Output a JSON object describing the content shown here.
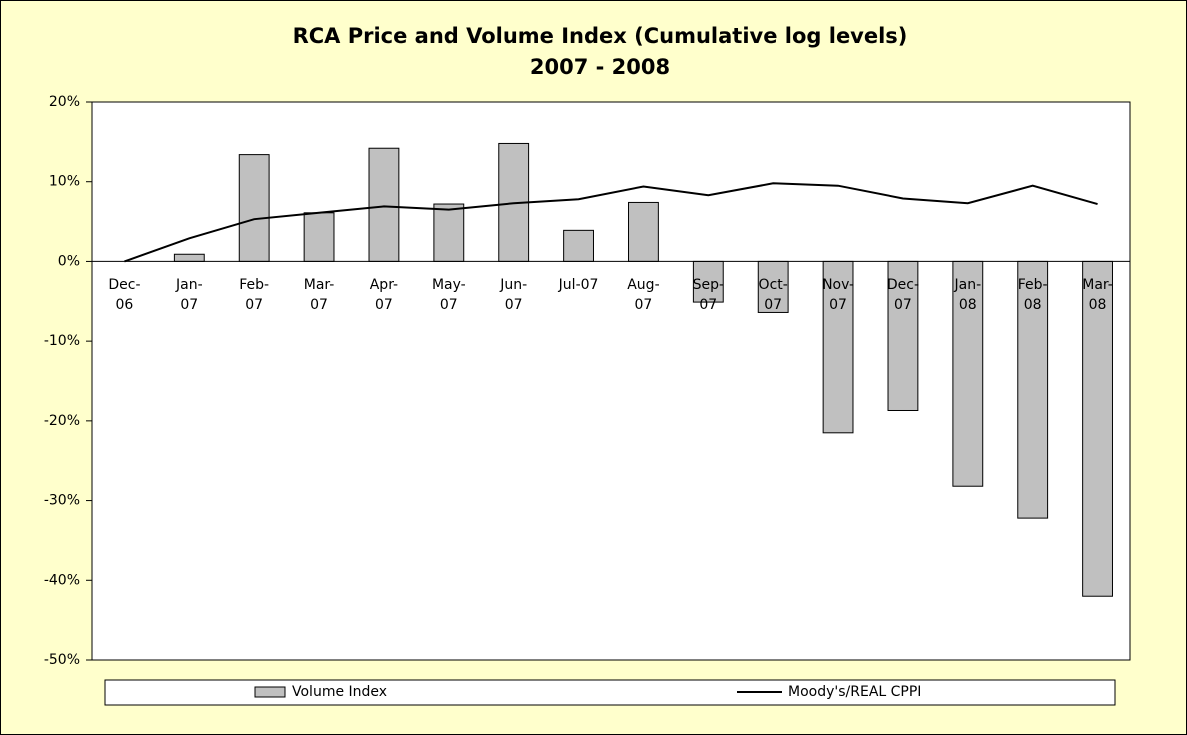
{
  "chart_data": {
    "type": "bar-line",
    "title": "RCA Price and Volume  Index (Cumulative log levels)",
    "subtitle": "2007 - 2008",
    "categories": [
      "Dec-06",
      "Jan-07",
      "Feb-07",
      "Mar-07",
      "Apr-07",
      "May-07",
      "Jun-07",
      "Jul-07",
      "Aug-07",
      "Sep-07",
      "Oct-07",
      "Nov-07",
      "Dec-07",
      "Jan-08",
      "Feb-08",
      "Mar-08"
    ],
    "series": [
      {
        "name": "Volume Index",
        "type": "bar",
        "color": "#c0c0c0",
        "values": [
          0,
          0.9,
          13.4,
          6.1,
          14.2,
          7.2,
          14.8,
          3.9,
          7.4,
          -5.1,
          -6.4,
          -21.5,
          -18.7,
          -28.2,
          -32.2,
          -42.0
        ]
      },
      {
        "name": "Moody's/REAL CPPI",
        "type": "line",
        "color": "#000000",
        "values": [
          0,
          2.9,
          5.3,
          6.1,
          6.9,
          6.5,
          7.3,
          7.8,
          9.4,
          8.3,
          9.8,
          9.5,
          7.9,
          7.3,
          9.5,
          7.2
        ]
      }
    ],
    "ylim": [
      -50,
      20
    ],
    "yticks": [
      {
        "value": -50,
        "label": "-50%"
      },
      {
        "value": -40,
        "label": "-40%"
      },
      {
        "value": -30,
        "label": "-30%"
      },
      {
        "value": -20,
        "label": "-20%"
      },
      {
        "value": -10,
        "label": "-10%"
      },
      {
        "value": 0,
        "label": "0%"
      },
      {
        "value": 10,
        "label": "10%"
      },
      {
        "value": 20,
        "label": "20%"
      }
    ],
    "legend": "bottom"
  }
}
